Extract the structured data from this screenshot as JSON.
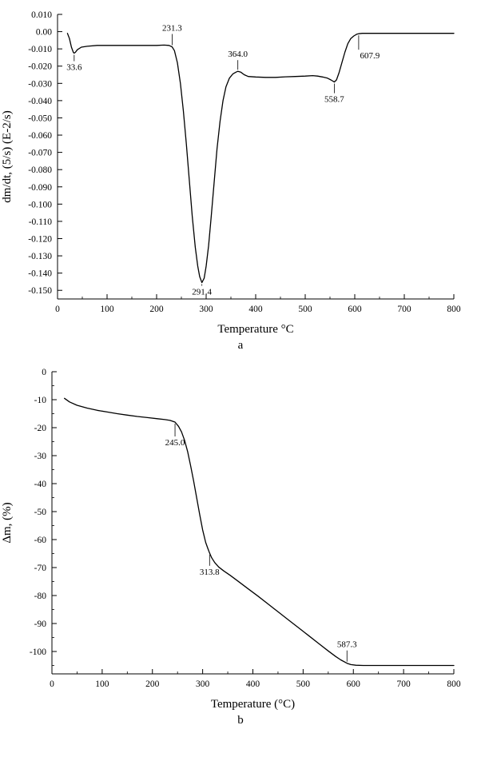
{
  "chart_data": [
    {
      "id": "dtg-curve",
      "type": "line",
      "sub_label": "a",
      "xlabel": "Temperature °C",
      "ylabel": "dm/dt, (5/s) (E-2/s)",
      "xlim": [
        0,
        800
      ],
      "ylim": [
        -0.155,
        0.01
      ],
      "xticks": [
        0,
        100,
        200,
        300,
        400,
        500,
        600,
        700,
        800
      ],
      "xtick_labels": [
        "0",
        "100",
        "200",
        "300",
        "400",
        "500",
        "600",
        "700",
        "800"
      ],
      "xminor": [
        50,
        150,
        250,
        350,
        450,
        550,
        650,
        750
      ],
      "yticks": [
        0.01,
        0.0,
        -0.01,
        -0.02,
        -0.03,
        -0.04,
        -0.05,
        -0.06,
        -0.07,
        -0.08,
        -0.09,
        -0.1,
        -0.11,
        -0.12,
        -0.13,
        -0.14,
        -0.15
      ],
      "ytick_labels": [
        "0.010",
        "0.00",
        "-0.010",
        "-0.020",
        "-0.030",
        "-0.040",
        "-0.050",
        "-0.060",
        "-0.070",
        "-0.080",
        "-0.090",
        "-0.100",
        "-0.110",
        "-0.120",
        "-0.130",
        "-0.140",
        "-0.150"
      ],
      "yminor": [],
      "line_color": "#000000",
      "legend": "none",
      "grid": false,
      "points": [
        [
          20,
          -0.001
        ],
        [
          24,
          -0.004
        ],
        [
          28,
          -0.009
        ],
        [
          32,
          -0.012
        ],
        [
          33.6,
          -0.0125
        ],
        [
          36,
          -0.012
        ],
        [
          40,
          -0.0105
        ],
        [
          48,
          -0.009
        ],
        [
          60,
          -0.0085
        ],
        [
          80,
          -0.008
        ],
        [
          120,
          -0.008
        ],
        [
          160,
          -0.008
        ],
        [
          200,
          -0.008
        ],
        [
          215,
          -0.0078
        ],
        [
          225,
          -0.008
        ],
        [
          231.3,
          -0.0088
        ],
        [
          236,
          -0.011
        ],
        [
          242,
          -0.018
        ],
        [
          248,
          -0.03
        ],
        [
          254,
          -0.046
        ],
        [
          260,
          -0.065
        ],
        [
          266,
          -0.086
        ],
        [
          272,
          -0.107
        ],
        [
          278,
          -0.125
        ],
        [
          283,
          -0.136
        ],
        [
          287,
          -0.142
        ],
        [
          291.4,
          -0.1455
        ],
        [
          296,
          -0.143
        ],
        [
          300,
          -0.136
        ],
        [
          305,
          -0.124
        ],
        [
          310,
          -0.108
        ],
        [
          316,
          -0.088
        ],
        [
          322,
          -0.068
        ],
        [
          328,
          -0.052
        ],
        [
          334,
          -0.04
        ],
        [
          340,
          -0.032
        ],
        [
          347,
          -0.027
        ],
        [
          354,
          -0.0245
        ],
        [
          360,
          -0.0235
        ],
        [
          364,
          -0.023
        ],
        [
          370,
          -0.0235
        ],
        [
          377,
          -0.025
        ],
        [
          385,
          -0.026
        ],
        [
          400,
          -0.0263
        ],
        [
          420,
          -0.0265
        ],
        [
          440,
          -0.0265
        ],
        [
          460,
          -0.0262
        ],
        [
          480,
          -0.026
        ],
        [
          500,
          -0.0258
        ],
        [
          515,
          -0.0255
        ],
        [
          525,
          -0.0258
        ],
        [
          535,
          -0.0263
        ],
        [
          545,
          -0.027
        ],
        [
          552,
          -0.028
        ],
        [
          558.7,
          -0.0292
        ],
        [
          563,
          -0.028
        ],
        [
          568,
          -0.024
        ],
        [
          574,
          -0.018
        ],
        [
          580,
          -0.012
        ],
        [
          586,
          -0.007
        ],
        [
          592,
          -0.004
        ],
        [
          598,
          -0.0025
        ],
        [
          604,
          -0.0015
        ],
        [
          607.9,
          -0.0012
        ],
        [
          615,
          -0.001
        ],
        [
          640,
          -0.001
        ],
        [
          680,
          -0.001
        ],
        [
          720,
          -0.001
        ],
        [
          760,
          -0.001
        ],
        [
          800,
          -0.001
        ]
      ],
      "annotations": [
        {
          "x": 33.6,
          "y": -0.0125,
          "label": "33.6",
          "side": "below",
          "len": 8,
          "dx": 0
        },
        {
          "x": 231.3,
          "y": -0.0088,
          "label": "231.3",
          "side": "above",
          "len": 14,
          "dx": 0
        },
        {
          "x": 291.4,
          "y": -0.1455,
          "label": "291.4",
          "side": "below",
          "len": 2,
          "dx": 0
        },
        {
          "x": 364.0,
          "y": -0.023,
          "label": "364.0",
          "side": "above",
          "len": 12,
          "dx": 0
        },
        {
          "x": 558.7,
          "y": -0.0292,
          "label": "558.7",
          "side": "below",
          "len": 12,
          "dx": 0
        },
        {
          "x": 607.9,
          "y": -0.0012,
          "label": "607.9",
          "side": "below",
          "len": 18,
          "dx": 14
        }
      ]
    },
    {
      "id": "tg-curve",
      "type": "line",
      "sub_label": "b",
      "xlabel": "Temperature (°C)",
      "ylabel": "Δm, (%)",
      "xlim": [
        0,
        800
      ],
      "ylim": [
        -108,
        0
      ],
      "xticks": [
        0,
        100,
        200,
        300,
        400,
        500,
        600,
        700,
        800
      ],
      "xtick_labels": [
        "0",
        "100",
        "200",
        "300",
        "400",
        "500",
        "600",
        "700",
        "800"
      ],
      "xminor": [
        50,
        150,
        250,
        350,
        450,
        550,
        650,
        750
      ],
      "yticks": [
        0,
        -10,
        -20,
        -30,
        -40,
        -50,
        -60,
        -70,
        -80,
        -90,
        -100
      ],
      "ytick_labels": [
        "0",
        "-10",
        "-20",
        "-30",
        "-40",
        "-50",
        "-60",
        "-70",
        "-80",
        "-90",
        "-100"
      ],
      "yminor": [
        -5,
        -15,
        -25,
        -35,
        -45,
        -55,
        -65,
        -75,
        -85,
        -95,
        -105
      ],
      "line_color": "#000000",
      "legend": "none",
      "grid": false,
      "points": [
        [
          25,
          -9.5
        ],
        [
          35,
          -10.8
        ],
        [
          50,
          -12
        ],
        [
          70,
          -13
        ],
        [
          90,
          -13.8
        ],
        [
          110,
          -14.4
        ],
        [
          130,
          -15
        ],
        [
          150,
          -15.5
        ],
        [
          170,
          -16
        ],
        [
          190,
          -16.4
        ],
        [
          210,
          -16.8
        ],
        [
          225,
          -17.1
        ],
        [
          235,
          -17.4
        ],
        [
          245,
          -18
        ],
        [
          252,
          -19.5
        ],
        [
          258,
          -21.5
        ],
        [
          264,
          -24.5
        ],
        [
          270,
          -28.5
        ],
        [
          276,
          -33.5
        ],
        [
          282,
          -39
        ],
        [
          288,
          -45
        ],
        [
          294,
          -51
        ],
        [
          300,
          -56.5
        ],
        [
          306,
          -61
        ],
        [
          310,
          -63
        ],
        [
          313.8,
          -64.8
        ],
        [
          318,
          -66.5
        ],
        [
          324,
          -68.2
        ],
        [
          332,
          -69.8
        ],
        [
          342,
          -71.2
        ],
        [
          355,
          -72.8
        ],
        [
          370,
          -74.8
        ],
        [
          390,
          -77.5
        ],
        [
          410,
          -80.2
        ],
        [
          430,
          -83
        ],
        [
          450,
          -85.8
        ],
        [
          470,
          -88.6
        ],
        [
          490,
          -91.4
        ],
        [
          510,
          -94.2
        ],
        [
          530,
          -97
        ],
        [
          550,
          -99.8
        ],
        [
          565,
          -101.8
        ],
        [
          575,
          -103
        ],
        [
          587.3,
          -104.2
        ],
        [
          595,
          -104.7
        ],
        [
          605,
          -104.9
        ],
        [
          620,
          -105
        ],
        [
          660,
          -105
        ],
        [
          700,
          -105
        ],
        [
          750,
          -105
        ],
        [
          800,
          -105
        ]
      ],
      "annotations": [
        {
          "x": 245.0,
          "y": -18,
          "label": "245.0",
          "side": "below",
          "len": 16,
          "dx": 0
        },
        {
          "x": 313.8,
          "y": -64.8,
          "label": "313.8",
          "side": "below",
          "len": 14,
          "dx": 0
        },
        {
          "x": 587.3,
          "y": -104.2,
          "label": "587.3",
          "side": "above",
          "len": 14,
          "dx": 0
        }
      ]
    }
  ]
}
